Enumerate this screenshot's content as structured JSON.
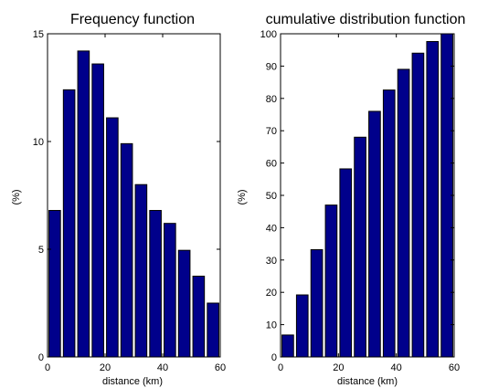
{
  "colors": {
    "bar_fill": "#00008b",
    "bar_edge": "#000000",
    "axes": "#000000",
    "background": "#ffffff"
  },
  "chart_data": [
    {
      "type": "bar",
      "title": "Frequency function",
      "xlabel": "distance (km)",
      "ylabel": "(%)",
      "x": [
        2.5,
        7.5,
        12.5,
        17.5,
        22.5,
        27.5,
        32.5,
        37.5,
        42.5,
        47.5,
        52.5,
        57.5
      ],
      "values": [
        6.8,
        12.4,
        14.2,
        13.6,
        11.1,
        9.9,
        8.0,
        6.8,
        6.2,
        4.95,
        3.75,
        2.5
      ],
      "xlim": [
        0,
        60
      ],
      "ylim": [
        0,
        15
      ],
      "xticks": [
        "0",
        "20",
        "40",
        "60"
      ],
      "yticks": [
        "0",
        "5",
        "10",
        "15"
      ],
      "grid": false,
      "legend": "none"
    },
    {
      "type": "bar",
      "title": "cumulative distribution function",
      "xlabel": "distance (km)",
      "ylabel": "(%)",
      "x": [
        2.5,
        7.5,
        12.5,
        17.5,
        22.5,
        27.5,
        32.5,
        37.5,
        42.5,
        47.5,
        52.5,
        57.5
      ],
      "values": [
        6.8,
        19.2,
        33.2,
        47.0,
        58.2,
        68.0,
        76.0,
        82.6,
        89.0,
        94.0,
        97.6,
        100.0
      ],
      "xlim": [
        0,
        60
      ],
      "ylim": [
        0,
        100
      ],
      "xticks": [
        "0",
        "20",
        "40",
        "60"
      ],
      "yticks": [
        "0",
        "10",
        "20",
        "30",
        "40",
        "50",
        "60",
        "70",
        "80",
        "90",
        "100"
      ],
      "grid": false,
      "legend": "none"
    }
  ]
}
